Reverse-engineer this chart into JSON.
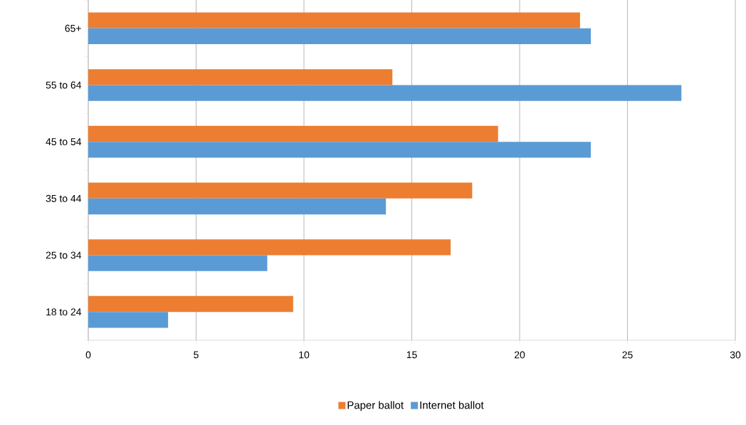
{
  "chart_data": {
    "type": "bar",
    "orientation": "horizontal",
    "categories": [
      "65+",
      "55 to 64",
      "45 to 54",
      "35 to 44",
      "25 to 34",
      "18 to 24"
    ],
    "series": [
      {
        "name": "Paper ballot",
        "color": "#ed7d31",
        "values": [
          22.8,
          14.1,
          19.0,
          17.8,
          16.8,
          9.5
        ]
      },
      {
        "name": "Internet ballot",
        "color": "#5b9bd5",
        "values": [
          23.3,
          27.5,
          23.3,
          13.8,
          8.3,
          3.7
        ]
      }
    ],
    "xlim": [
      0,
      30
    ],
    "xticks": [
      0,
      5,
      10,
      15,
      20,
      25,
      30
    ],
    "grid": "x",
    "legend": "bottom"
  }
}
